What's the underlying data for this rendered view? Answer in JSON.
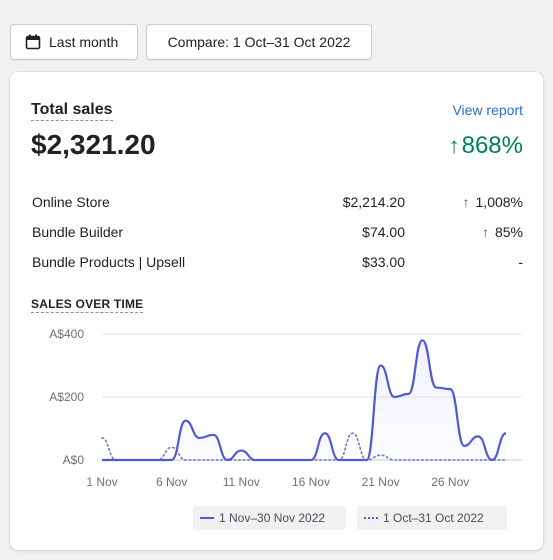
{
  "toolbar": {
    "date_label": "Last month",
    "compare_label": "Compare: 1 Oct–31 Oct 2022"
  },
  "card": {
    "title": "Total sales",
    "view_report": "View report",
    "total": "$2,321.20",
    "change": "868%",
    "breakdown": [
      {
        "name": "Online Store",
        "value": "$2,214.20",
        "pct": "1,008%",
        "trend": "up"
      },
      {
        "name": "Bundle Builder",
        "value": "$74.00",
        "pct": "85%",
        "trend": "up"
      },
      {
        "name": "Bundle Products | Upsell",
        "value": "$33.00",
        "pct": "-",
        "trend": "none"
      }
    ],
    "sales_over_time": "SALES OVER TIME"
  },
  "chart_data": {
    "type": "line",
    "x": [
      1,
      2,
      3,
      4,
      5,
      6,
      7,
      8,
      9,
      10,
      11,
      12,
      13,
      14,
      15,
      16,
      17,
      18,
      19,
      20,
      21,
      22,
      23,
      24,
      25,
      26,
      27,
      28,
      29,
      30
    ],
    "xticks": [
      "1 Nov",
      "6 Nov",
      "11 Nov",
      "16 Nov",
      "21 Nov",
      "26 Nov"
    ],
    "yticks": [
      "A$0",
      "A$200",
      "A$400"
    ],
    "ylim": [
      0,
      400
    ],
    "series": [
      {
        "name": "1 Nov–30 Nov 2022",
        "color": "#4f5bd5",
        "style": "solid",
        "values": [
          0,
          0,
          0,
          0,
          0,
          0,
          125,
          70,
          80,
          0,
          30,
          0,
          0,
          0,
          0,
          0,
          85,
          0,
          0,
          0,
          300,
          200,
          210,
          380,
          230,
          225,
          45,
          75,
          0,
          85
        ]
      },
      {
        "name": "1 Oct–31 Oct 2022",
        "color": "#4f5bd5",
        "style": "dotted",
        "values": [
          70,
          0,
          0,
          0,
          0,
          40,
          0,
          0,
          0,
          0,
          0,
          0,
          0,
          0,
          0,
          0,
          0,
          0,
          85,
          0,
          15,
          0,
          0,
          0,
          0,
          0,
          0,
          0,
          0,
          0
        ]
      }
    ],
    "grid": true,
    "legend_position": "bottom-right"
  }
}
